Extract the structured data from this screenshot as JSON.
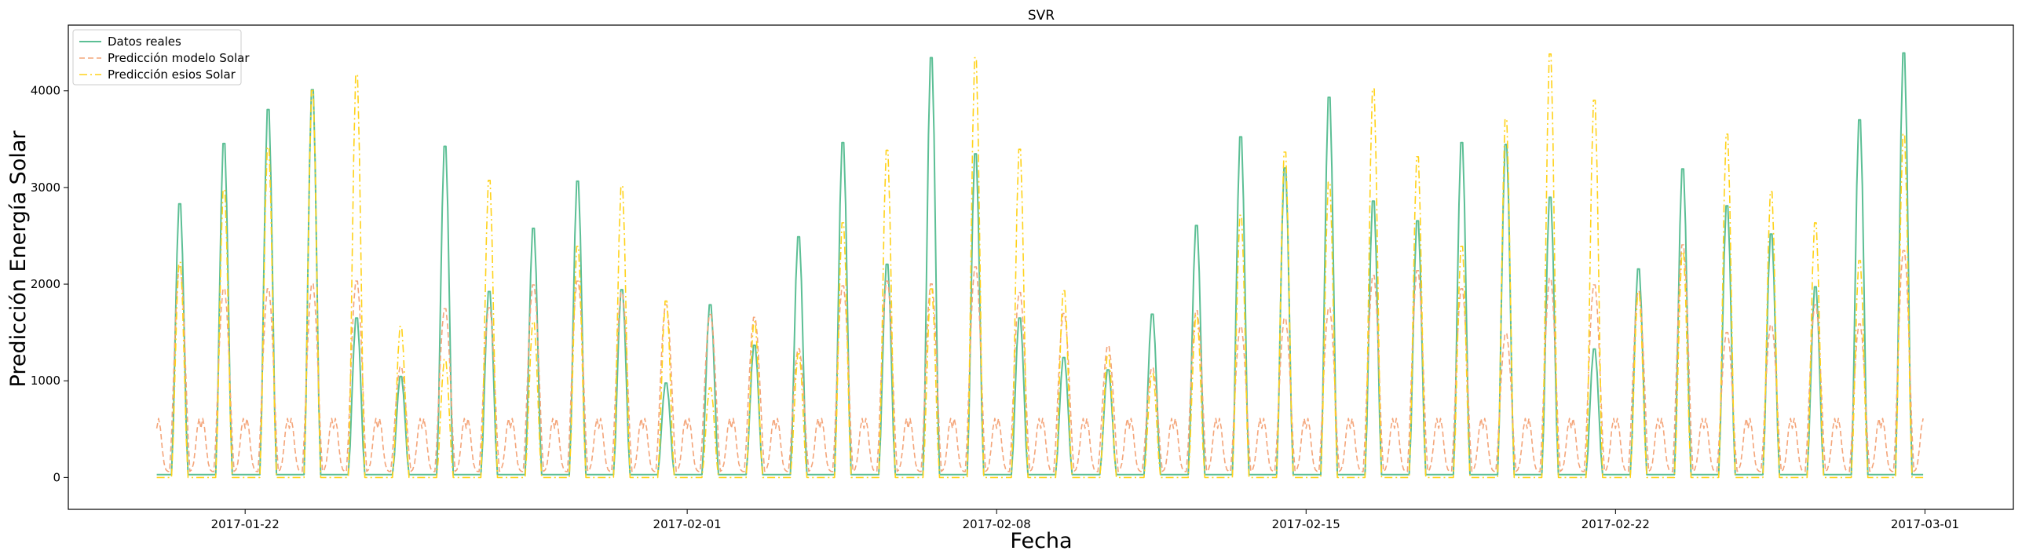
{
  "chart_data": {
    "type": "line",
    "title": "SVR",
    "xlabel": "Fecha",
    "ylabel": "Predicción Energía Solar",
    "x_start": "2017-01-20",
    "x_end": "2017-03-02",
    "xlim": [
      "2017-01-18T00:00",
      "2017-03-03T00:00"
    ],
    "ylim": [
      -330,
      4680
    ],
    "x_ticks": [
      "2017-01-22",
      "2017-02-01",
      "2017-02-08",
      "2017-02-15",
      "2017-02-22",
      "2017-03-01"
    ],
    "y_ticks": [
      0,
      1000,
      2000,
      3000,
      4000
    ],
    "grid": false,
    "legend_position": "upper-left",
    "series": [
      {
        "name": "Datos reales",
        "color": "#5cbf95",
        "style": "solid",
        "daily_peaks": [
          2870,
          3510,
          3870,
          4080,
          1660,
          1040,
          3480,
          1940,
          2610,
          3110,
          1960,
          970,
          1800,
          1370,
          2520,
          3520,
          2230,
          4420,
          3400,
          1660,
          1240,
          1110,
          1700,
          2640,
          3580,
          3250,
          4000,
          2900,
          2690,
          3520,
          3500,
          2940,
          1330,
          2180,
          3240,
          2850,
          2550,
          1990,
          3760,
          4470
        ]
      },
      {
        "name": "Predicción modelo Solar",
        "color": "#f4a57a",
        "style": "dashed",
        "daily_peaks": [
          2150,
          1920,
          1920,
          1970,
          2000,
          1100,
          1710,
          1720,
          1960,
          2000,
          1880,
          1750,
          1650,
          1620,
          1290,
          1950,
          2000,
          1970,
          2150,
          1880,
          1660,
          1320,
          1090,
          1690,
          1520,
          1610,
          1720,
          2060,
          2110,
          1920,
          1450,
          2030,
          1960,
          1890,
          2380,
          1460,
          1540,
          1750,
          1550,
          2320
        ]
      },
      {
        "name": "Predicción esios Solar",
        "color": "#ffd21a",
        "style": "dashdot",
        "daily_peaks": [
          2280,
          3050,
          3500,
          4100,
          4270,
          1600,
          1250,
          3150,
          1650,
          2450,
          3090,
          1870,
          950,
          1650,
          1310,
          2700,
          3470,
          2000,
          4450,
          3480,
          1980,
          1300,
          1100,
          1720,
          2780,
          3450,
          3130,
          4120,
          3400,
          2450,
          3800,
          4490,
          4000,
          1960,
          2390,
          3640,
          3030,
          2700,
          2300,
          3640
        ]
      }
    ]
  }
}
